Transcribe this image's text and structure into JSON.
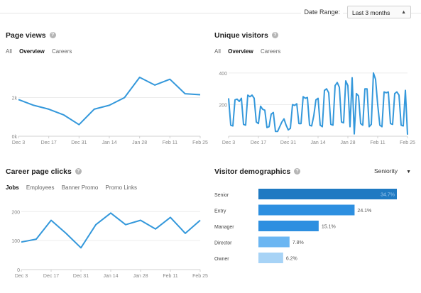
{
  "toolbar": {
    "date_range_label": "Date Range:",
    "date_range_value": "Last 3 months"
  },
  "colors": {
    "line": "#3498db",
    "bar_dark": "#1f7ac2",
    "bar_mid": "#2d8fe0",
    "bar_light": "#6bb6f2",
    "bar_lighter": "#a7d3f6"
  },
  "page_views": {
    "title": "Page views",
    "tabs": [
      {
        "label": "All"
      },
      {
        "label": "Overview"
      },
      {
        "label": "Careers"
      }
    ],
    "active_tab": 1,
    "chart_data": {
      "type": "line",
      "x": [
        "Dec 3",
        "Dec 10",
        "Dec 17",
        "Dec 24",
        "Dec 31",
        "Jan 7",
        "Jan 14",
        "Jan 21",
        "Jan 28",
        "Feb 4",
        "Feb 11",
        "Feb 18",
        "Feb 25"
      ],
      "y_ticks": [
        "0k",
        "2k"
      ],
      "ylim": [
        0,
        3600
      ],
      "x_tick_labels": [
        "Dec 3",
        "Dec 17",
        "Dec 31",
        "Jan 14",
        "Jan 28",
        "Feb 11",
        "Feb 25"
      ],
      "values": [
        1900,
        1600,
        1400,
        1100,
        600,
        1400,
        1600,
        2000,
        3050,
        2650,
        2950,
        2200,
        2150
      ]
    }
  },
  "unique_visitors": {
    "title": "Unique visitors",
    "tabs": [
      {
        "label": "All"
      },
      {
        "label": "Overview"
      },
      {
        "label": "Careers"
      }
    ],
    "active_tab": 1,
    "chart_data": {
      "type": "line",
      "y_ticks": [
        "200",
        "400"
      ],
      "ylim": [
        0,
        440
      ],
      "x_tick_labels": [
        "Dec 3",
        "Dec 17",
        "Dec 31",
        "Jan 14",
        "Jan 28",
        "Feb 11",
        "Feb 25"
      ],
      "values": [
        240,
        70,
        65,
        230,
        235,
        220,
        240,
        75,
        70,
        260,
        250,
        260,
        240,
        90,
        80,
        190,
        170,
        165,
        55,
        60,
        140,
        150,
        30,
        30,
        60,
        90,
        110,
        70,
        40,
        50,
        200,
        195,
        205,
        80,
        80,
        250,
        240,
        245,
        70,
        65,
        130,
        230,
        240,
        70,
        60,
        290,
        300,
        275,
        75,
        70,
        320,
        340,
        310,
        90,
        85,
        350,
        320,
        60,
        370,
        15,
        270,
        255,
        80,
        70,
        300,
        300,
        60,
        75,
        400,
        360,
        200,
        70,
        60,
        280,
        275,
        280,
        80,
        75,
        270,
        280,
        260,
        70,
        65,
        290,
        10
      ]
    }
  },
  "career_clicks": {
    "title": "Career page clicks",
    "tabs": [
      {
        "label": "Jobs"
      },
      {
        "label": "Employees"
      },
      {
        "label": "Banner Promo"
      },
      {
        "label": "Promo Links"
      }
    ],
    "active_tab": 0,
    "chart_data": {
      "type": "line",
      "y_ticks": [
        "0",
        "100",
        "200"
      ],
      "ylim": [
        0,
        230
      ],
      "x_tick_labels": [
        "Dec 3",
        "Dec 17",
        "Dec 31",
        "Jan 14",
        "Jan 28",
        "Feb 11",
        "Feb 25"
      ],
      "values": [
        95,
        105,
        170,
        125,
        75,
        155,
        195,
        155,
        170,
        140,
        180,
        125,
        170
      ]
    }
  },
  "demographics": {
    "title": "Visitor demographics",
    "dropdown": "Seniority",
    "chart_data": {
      "type": "bar",
      "categories": [
        "Senior",
        "Entry",
        "Manager",
        "Director",
        "Owner"
      ],
      "values": [
        34.7,
        24.1,
        15.1,
        7.8,
        6.2
      ],
      "labels": [
        "34.7%",
        "24.1%",
        "15.1%",
        "7.8%",
        "6.2%"
      ]
    }
  }
}
